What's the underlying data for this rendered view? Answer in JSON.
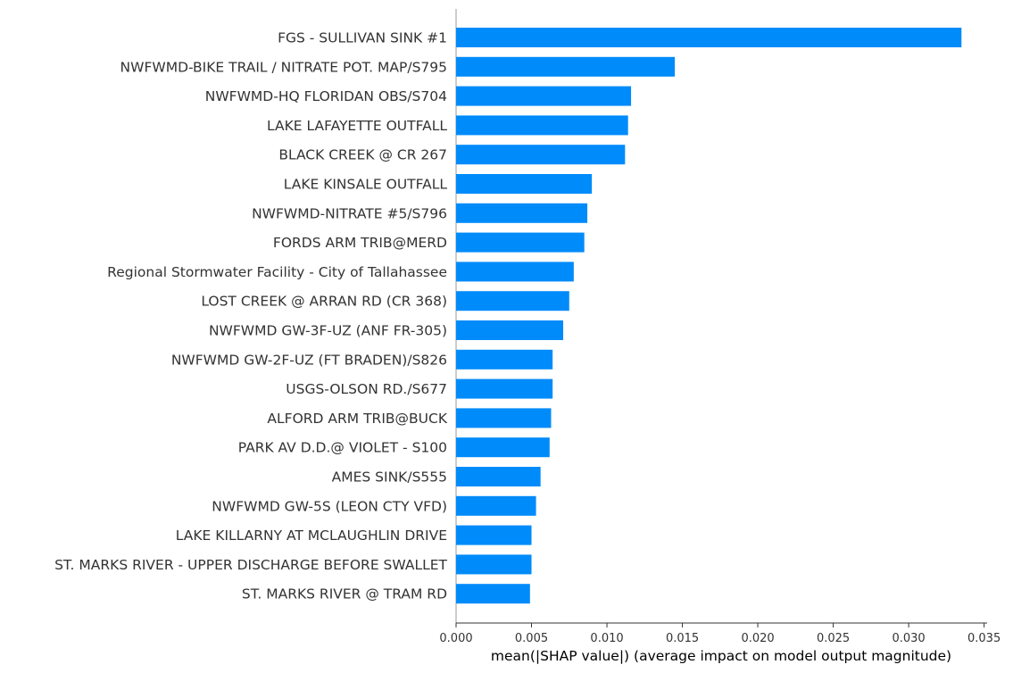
{
  "chart_data": {
    "type": "bar",
    "orientation": "horizontal",
    "categories": [
      "FGS - SULLIVAN SINK #1",
      "NWFWMD-BIKE TRAIL / NITRATE POT. MAP/S795",
      "NWFWMD-HQ FLORIDAN OBS/S704",
      "LAKE LAFAYETTE OUTFALL",
      "BLACK CREEK @ CR 267",
      "LAKE KINSALE OUTFALL",
      "NWFWMD-NITRATE #5/S796",
      "FORDS ARM TRIB@MERD",
      "Regional Stormwater Facility - City of Tallahassee",
      "LOST CREEK @ ARRAN RD (CR 368)",
      "NWFWMD GW-3F-UZ (ANF FR-305)",
      "NWFWMD GW-2F-UZ (FT BRADEN)/S826",
      "USGS-OLSON RD./S677",
      "ALFORD ARM TRIB@BUCK",
      "PARK AV D.D.@ VIOLET - S100",
      "AMES SINK/S555",
      "NWFWMD GW-5S (LEON CTY VFD)",
      "LAKE KILLARNY AT MCLAUGHLIN DRIVE",
      "ST. MARKS RIVER - UPPER DISCHARGE BEFORE SWALLET",
      "ST. MARKS RIVER @ TRAM RD"
    ],
    "values": [
      0.0335,
      0.0145,
      0.0116,
      0.0114,
      0.0112,
      0.009,
      0.0087,
      0.0085,
      0.0078,
      0.0075,
      0.0071,
      0.0064,
      0.0064,
      0.0063,
      0.0062,
      0.0056,
      0.0053,
      0.005,
      0.005,
      0.0049
    ],
    "xlabel": "mean(|SHAP value|) (average impact on model output magnitude)",
    "ylabel": "",
    "title": "",
    "xlim": [
      0.0,
      0.0352
    ],
    "xticks": [
      "0.000",
      "0.005",
      "0.010",
      "0.015",
      "0.020",
      "0.025",
      "0.030",
      "0.035"
    ],
    "xtick_values": [
      0.0,
      0.005,
      0.01,
      0.015,
      0.02,
      0.025,
      0.03,
      0.035
    ],
    "bar_color": "#008BFB",
    "grid": false,
    "legend": "none"
  }
}
